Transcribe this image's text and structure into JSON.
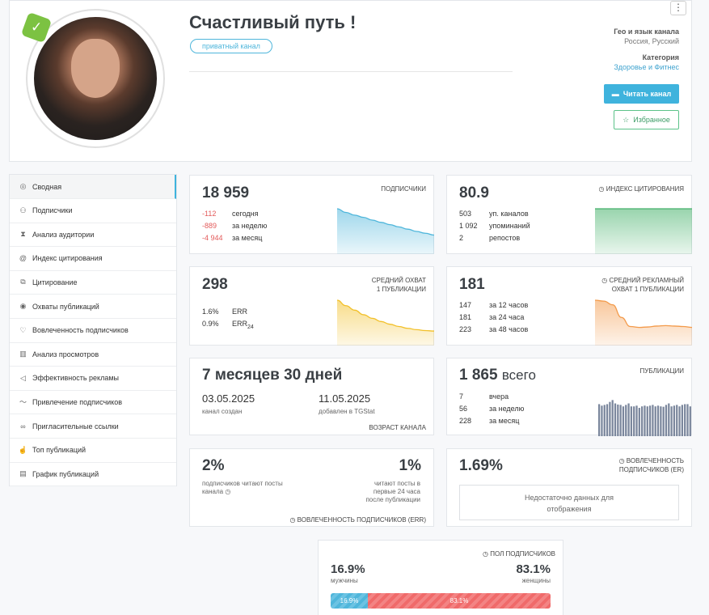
{
  "header": {
    "title": "Счастливый путь !",
    "badge": "приватный канал",
    "geo_label": "Гео и язык канала",
    "geo_value": "Россия, Русский",
    "category_label": "Категория",
    "category_value": "Здоровье и Фитнес",
    "read_button": "Читать канал",
    "fav_button": "Избранное",
    "menu": "⋮"
  },
  "sidebar": {
    "items": [
      {
        "label": "Сводная",
        "icon": "dashboard-icon"
      },
      {
        "label": "Подписчики",
        "icon": "users-icon"
      },
      {
        "label": "Анализ аудитории",
        "icon": "hourglass-icon"
      },
      {
        "label": "Индекс цитирования",
        "icon": "at-icon"
      },
      {
        "label": "Цитирование",
        "icon": "copy-icon"
      },
      {
        "label": "Охваты публикаций",
        "icon": "eye-icon"
      },
      {
        "label": "Вовлеченность подписчиков",
        "icon": "heart-icon"
      },
      {
        "label": "Анализ просмотров",
        "icon": "bar-chart-icon"
      },
      {
        "label": "Эффективность рекламы",
        "icon": "megaphone-icon"
      },
      {
        "label": "Привлечение подписчиков",
        "icon": "trend-icon"
      },
      {
        "label": "Пригласительные ссылки",
        "icon": "link-icon"
      },
      {
        "label": "Топ публикаций",
        "icon": "thumbs-up-icon"
      },
      {
        "label": "График публикаций",
        "icon": "calendar-icon"
      }
    ]
  },
  "subscribers": {
    "value": "18 959",
    "label": "ПОДПИСЧИКИ",
    "rows": [
      {
        "v": "-112",
        "t": "сегодня"
      },
      {
        "v": "-889",
        "t": "за неделю"
      },
      {
        "v": "-4 944",
        "t": "за месяц"
      }
    ],
    "color": "#4fb6db"
  },
  "citation": {
    "value": "80.9",
    "label": "ИНДЕКС ЦИТИРОВАНИЯ",
    "rows": [
      {
        "v": "503",
        "t": "уп. каналов"
      },
      {
        "v": "1 092",
        "t": "упоминаний"
      },
      {
        "v": "2",
        "t": "репостов"
      }
    ],
    "color": "#45b16a"
  },
  "reach": {
    "value": "298",
    "label1": "СРЕДНИЙ ОХВАТ",
    "label2": "1 ПУБЛИКАЦИИ",
    "rows": [
      {
        "v": "1.6%",
        "t": "ERR"
      },
      {
        "v": "0.9%",
        "t": "ERR",
        "sub": "24"
      }
    ],
    "color": "#f2c029"
  },
  "ad_reach": {
    "value": "181",
    "label1": "СРЕДНИЙ РЕКЛАМНЫЙ",
    "label2": "ОХВАТ 1 ПУБЛИКАЦИИ",
    "rows": [
      {
        "v": "147",
        "t": "за 12 часов"
      },
      {
        "v": "181",
        "t": "за 24 часа"
      },
      {
        "v": "223",
        "t": "за 48 часов"
      }
    ],
    "color": "#f39a4a"
  },
  "age": {
    "value": "7 месяцев 30 дней",
    "created_date": "03.05.2025",
    "created_label": "канал создан",
    "added_date": "11.05.2025",
    "added_label": "добавлен в TGStat",
    "label": "ВОЗРАСТ КАНАЛА"
  },
  "posts": {
    "value": "1 865",
    "suffix": "всего",
    "label": "ПУБЛИКАЦИИ",
    "rows": [
      {
        "v": "7",
        "t": "вчера"
      },
      {
        "v": "56",
        "t": "за неделю"
      },
      {
        "v": "228",
        "t": "за месяц"
      }
    ],
    "color": "#7a869c"
  },
  "err": {
    "left_value": "2%",
    "left_text": "подписчиков читают посты канала",
    "right_value": "1%",
    "right_text": "читают посты в первые 24 часа после публикации",
    "label": "ВОВЛЕЧЕННОСТЬ ПОДПИСЧИКОВ (ERR)"
  },
  "er": {
    "value": "1.69%",
    "label1": "ВОВЛЕЧЕННОСТЬ",
    "label2": "ПОДПИСЧИКОВ (ER)",
    "empty": "Недостаточно данных для отображения"
  },
  "gender": {
    "label": "ПОЛ ПОДПИСЧИКОВ",
    "male_pct": "16.9%",
    "male_label": "мужчины",
    "female_pct": "83.1%",
    "female_label": "женщины",
    "male_fraction": 0.169,
    "male_color": "#4fb6db",
    "female_color": "#f06a6a"
  },
  "chart_data": [
    {
      "type": "area",
      "series": [
        {
          "values": [
            100,
            92,
            86,
            81,
            75,
            70,
            65,
            60,
            55,
            50,
            46,
            42
          ]
        }
      ]
    },
    {
      "type": "area",
      "series": [
        {
          "values": [
            100,
            100,
            100,
            100,
            100,
            100,
            100,
            100,
            100,
            100,
            100,
            100
          ]
        }
      ]
    },
    {
      "type": "area",
      "series": [
        {
          "values": [
            100,
            88,
            78,
            68,
            60,
            53,
            47,
            42,
            38,
            35,
            33,
            32
          ]
        }
      ]
    },
    {
      "type": "area",
      "series": [
        {
          "values": [
            100,
            98,
            90,
            62,
            42,
            40,
            41,
            43,
            44,
            43,
            42,
            40
          ]
        }
      ]
    },
    {
      "type": "bar",
      "series": [
        {
          "values": [
            86,
            82,
            84,
            86,
            92,
            97,
            88,
            85,
            84,
            80,
            84,
            88,
            80,
            80,
            82,
            76,
            80,
            82,
            80,
            82,
            84,
            80,
            82,
            80,
            79,
            84,
            88,
            80,
            82,
            84,
            80,
            84,
            86,
            86,
            80
          ]
        }
      ]
    }
  ]
}
